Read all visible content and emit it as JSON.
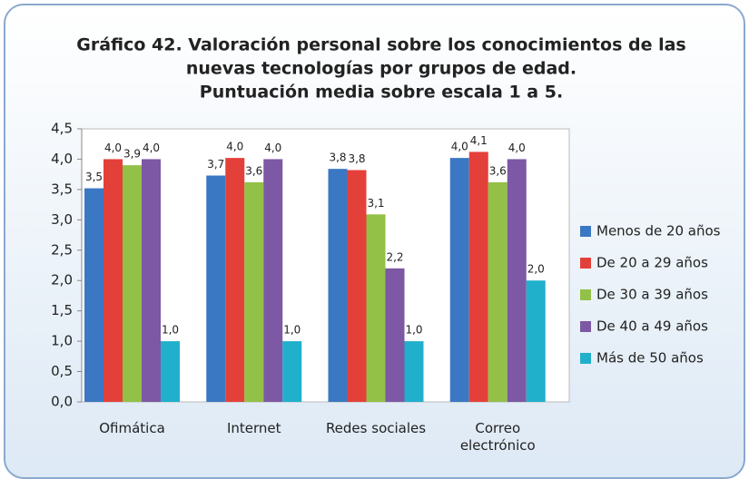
{
  "chart_data": {
    "type": "bar",
    "title": [
      "Gráfico 42. Valoración personal sobre los conocimientos de las",
      "nuevas tecnologías por grupos de edad.",
      "Puntuación media sobre escala 1 a 5."
    ],
    "categories": [
      "Ofimática",
      "Internet",
      "Redes sociales",
      "Correo electrónico"
    ],
    "series": [
      {
        "name": "Menos de 20 años",
        "color": "#3b78c3",
        "values": [
          3.52,
          3.73,
          3.84,
          4.02
        ],
        "value_labels": [
          "3,5",
          "3,7",
          "3,8",
          "4,0"
        ]
      },
      {
        "name": "De 20 a 29 años",
        "color": "#e4403a",
        "values": [
          4.0,
          4.02,
          3.82,
          4.12
        ],
        "value_labels": [
          "4,0",
          "4,0",
          "3,8",
          "4,1"
        ]
      },
      {
        "name": "De 30 a 39 años",
        "color": "#93c047",
        "values": [
          3.9,
          3.62,
          3.09,
          3.62
        ],
        "value_labels": [
          "3,9",
          "3,6",
          "3,1",
          "3,6"
        ]
      },
      {
        "name": "De 40 a 49 años",
        "color": "#7d58a5",
        "values": [
          4.0,
          4.0,
          2.2,
          4.0
        ],
        "value_labels": [
          "4,0",
          "4,0",
          "2,2",
          "4,0"
        ]
      },
      {
        "name": "Más de 50 años",
        "color": "#20b0cc",
        "values": [
          1.0,
          1.0,
          1.0,
          2.0
        ],
        "value_labels": [
          "1,0",
          "1,0",
          "1,0",
          "2,0"
        ]
      }
    ],
    "ylim": [
      0,
      4.5
    ],
    "yticks": [
      {
        "value": 0,
        "label": "0,0"
      },
      {
        "value": 0.5,
        "label": "0,5"
      },
      {
        "value": 1,
        "label": "1,0"
      },
      {
        "value": 1.5,
        "label": "1,5"
      },
      {
        "value": 2,
        "label": "2,0"
      },
      {
        "value": 2.5,
        "label": "2,5"
      },
      {
        "value": 3,
        "label": "3,0"
      },
      {
        "value": 3.5,
        "label": "3,5"
      },
      {
        "value": 4,
        "label": "4,0"
      },
      {
        "value": 4.5,
        "label": "4,5"
      }
    ],
    "grid": false,
    "legend": "right"
  }
}
